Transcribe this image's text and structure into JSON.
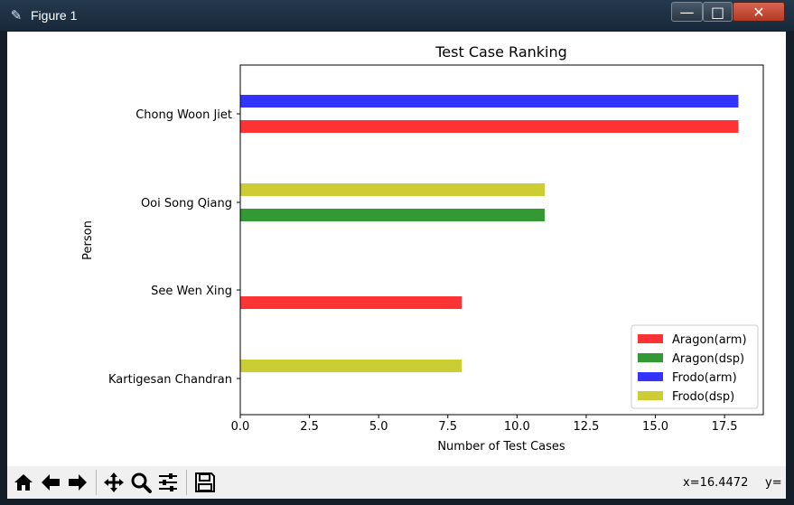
{
  "window": {
    "title": "Figure 1",
    "app_icon": "feather-icon",
    "controls": {
      "minimize": "—",
      "maximize": "□",
      "close": "✕"
    }
  },
  "toolbar": {
    "buttons": [
      {
        "name": "home-icon"
      },
      {
        "name": "back-arrow-icon"
      },
      {
        "name": "forward-arrow-icon"
      },
      {
        "name": "pan-icon"
      },
      {
        "name": "zoom-icon"
      },
      {
        "name": "configure-subplots-icon"
      },
      {
        "name": "save-icon"
      }
    ],
    "x_readout": "x=16.4472",
    "y_readout": "y="
  },
  "colors": {
    "Aragon(arm)": "#ff3333",
    "Aragon(dsp)": "#339933",
    "Frodo(arm)": "#3333ff",
    "Frodo(dsp)": "#cccc33"
  },
  "chart_data": {
    "type": "bar",
    "orientation": "horizontal",
    "title": "Test Case Ranking",
    "xlabel": "Number of Test Cases",
    "ylabel": "Person",
    "categories": [
      "Kartigesan Chandran",
      "See Wen Xing",
      "Ooi Song Qiang",
      "Chong Woon Jiet"
    ],
    "series": [
      {
        "name": "Aragon(arm)",
        "values": [
          0,
          8,
          0,
          18
        ]
      },
      {
        "name": "Aragon(dsp)",
        "values": [
          0,
          0,
          11,
          0
        ]
      },
      {
        "name": "Frodo(arm)",
        "values": [
          0,
          0,
          0,
          18
        ]
      },
      {
        "name": "Frodo(dsp)",
        "values": [
          8,
          0,
          11,
          0
        ]
      }
    ],
    "xlim": [
      0,
      18.9
    ],
    "xticks": [
      "0.0",
      "2.5",
      "5.0",
      "7.5",
      "10.0",
      "12.5",
      "15.0",
      "17.5"
    ],
    "legend_position": "lower-right",
    "grid": false
  }
}
